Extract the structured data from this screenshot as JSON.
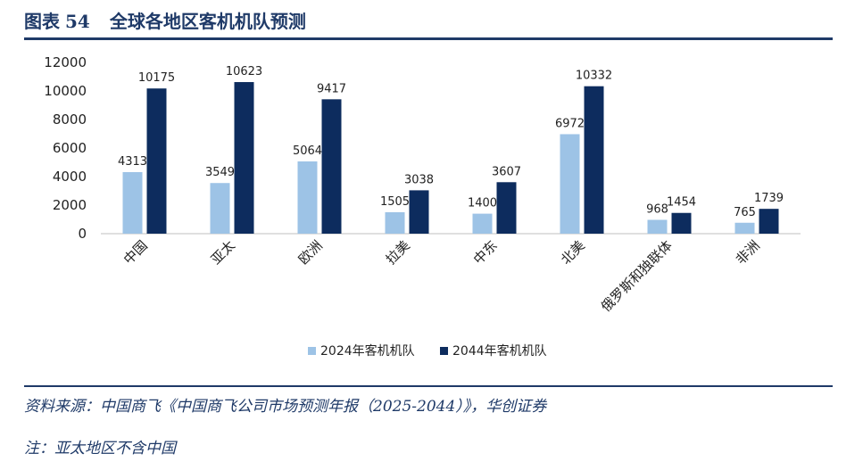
{
  "figure": {
    "title_prefix": "图表",
    "title_number": "54",
    "title_text": "全球各地区客机机队预测"
  },
  "source": "资料来源：中国商飞《中国商飞公司市场预测年报（2025-2044）》，华创证券",
  "note": "注：亚太地区不含中国",
  "colors": {
    "accent": "#1f3a68",
    "series_2024": "#9dc3e6",
    "series_2044": "#0d2c5e"
  },
  "chart_data": {
    "type": "bar",
    "categories": [
      "中国",
      "亚太",
      "欧洲",
      "拉美",
      "中东",
      "北美",
      "俄罗斯和独联体",
      "非洲"
    ],
    "series": [
      {
        "name": "2024年客机机队",
        "values": [
          4313,
          3549,
          5064,
          1505,
          1400,
          6972,
          968,
          765
        ]
      },
      {
        "name": "2044年客机机队",
        "values": [
          10175,
          10623,
          9417,
          3038,
          3607,
          10332,
          1454,
          1739
        ]
      }
    ],
    "yticks": [
      "0",
      "2000",
      "4000",
      "6000",
      "8000",
      "10000",
      "12000"
    ],
    "ylim": [
      0,
      12000
    ],
    "legend": "bottom",
    "grid": false
  }
}
